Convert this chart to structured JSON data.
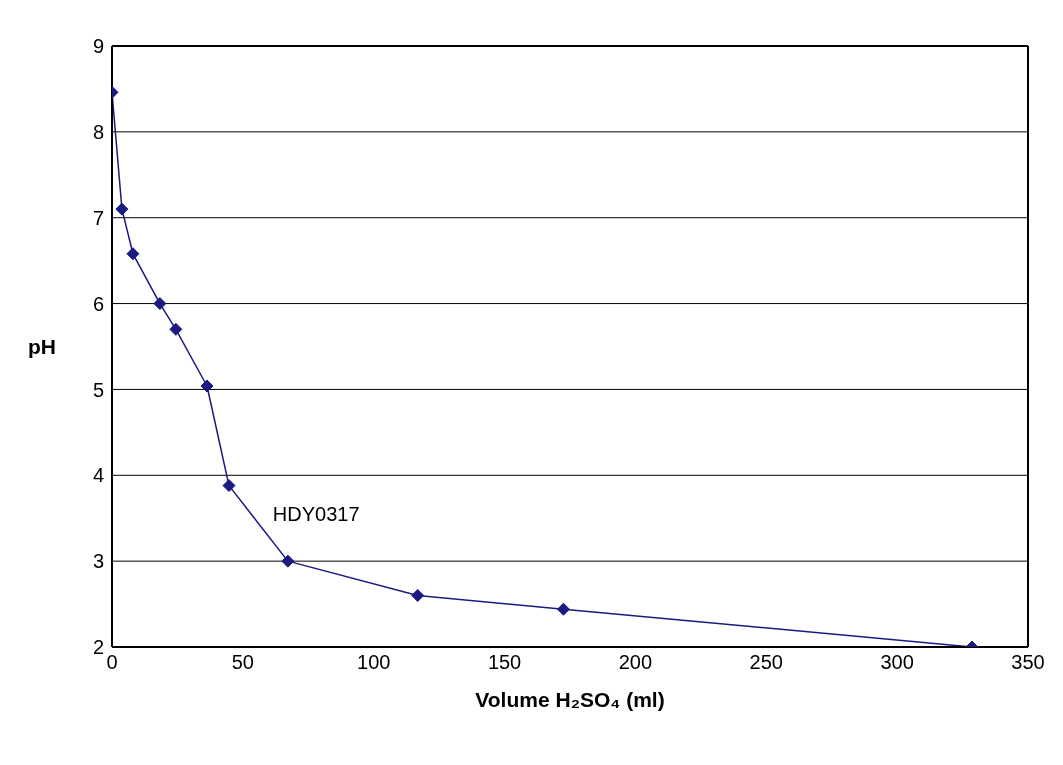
{
  "chart_data": {
    "type": "line",
    "xlabel": "Volume H₂SO₄ (ml)",
    "ylabel": "pH",
    "series": [
      {
        "name": "HDY0317",
        "color": "#1a1a80",
        "x": [
          0,
          3.8,
          8,
          18.3,
          24.4,
          36.3,
          44.7,
          67.2,
          116.8,
          172.5,
          328.6
        ],
        "values": [
          8.46,
          7.1,
          6.58,
          6.0,
          5.7,
          5.04,
          3.88,
          3.0,
          2.6,
          2.44,
          2.0
        ]
      }
    ],
    "xlim": [
      0,
      350
    ],
    "xticks": [
      0,
      50,
      100,
      150,
      200,
      250,
      300,
      350
    ],
    "ylim": [
      2,
      9
    ],
    "yticks": [
      2,
      3,
      4,
      5,
      6,
      7,
      8,
      9
    ],
    "grid": "y",
    "marker": "diamond",
    "line_style": "solid",
    "legend": false
  }
}
